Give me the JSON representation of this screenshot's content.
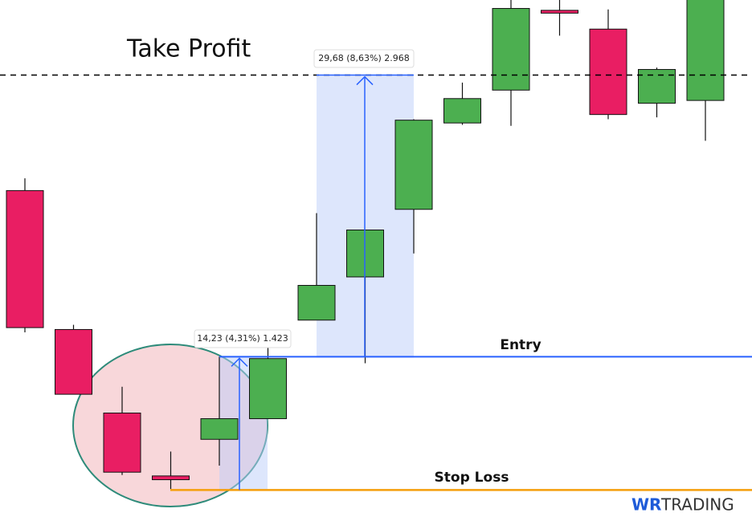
{
  "chart_data": {
    "type": "candlestick",
    "open": [
      362.1,
      347.3,
      338.4,
      331.7,
      335.6,
      337.8,
      348.3,
      352.9,
      360.1,
      369.3,
      372.8,
      381.3,
      379.3,
      371.4,
      371.7
    ],
    "high": [
      363.4,
      347.8,
      341.2,
      334.3,
      344.4,
      345.8,
      359.7,
      357.9,
      369.7,
      373.6,
      382.4,
      382.4,
      381.4,
      375.2,
      383.5
    ],
    "low": [
      347.0,
      340.4,
      331.8,
      330.3,
      332.8,
      337.8,
      348.3,
      343.7,
      355.4,
      369.1,
      369.0,
      378.6,
      369.7,
      369.9,
      367.4
    ],
    "close": [
      347.5,
      340.4,
      332.1,
      331.3,
      337.8,
      344.2,
      352.0,
      357.9,
      369.6,
      371.9,
      381.5,
      381.0,
      370.2,
      375.0,
      382.8
    ],
    "up_color": "#4caf50",
    "down_color": "#e91e63",
    "ylim": [
      326.9,
      382.4
    ],
    "levels": [
      {
        "name": "Take Profit",
        "value": 374.4,
        "color": "#000000"
      },
      {
        "name": "Entry",
        "value": 344.4,
        "color": "#2962ff"
      },
      {
        "name": "Stop Loss",
        "value": 330.2,
        "color": "#f59e0b"
      }
    ],
    "measurements": [
      "14,23 (4,31%) 1.423",
      "29,68 (8,63%) 2.968"
    ],
    "logo": {
      "mark": "WR",
      "text": "TRADING"
    }
  }
}
